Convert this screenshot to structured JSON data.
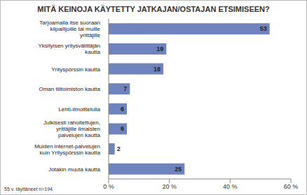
{
  "chart_data": {
    "type": "bar",
    "title": "MITÄ KEINOJA KÄYTETTY JATKAJAN/OSTAJAN ETSIMISEEN?",
    "orientation": "horizontal",
    "categories": [
      "Tarjoamalla itse suoraan kilpailijoille tai muille yrittäjille",
      "Yksityisen yritysvälittäjän kautta",
      "Yrityspörssin kautta",
      "Oman tilitoimiston kautta",
      "Lehti-ilmoittelulla",
      "Julkisesti rahoitettujen, yrittäjille ilmaisten palvelujen kautta",
      "Muiden internet-palvelujen kuin Yrityspörssin kautta",
      "Jotakin muuta kautta"
    ],
    "values": [
      53,
      19,
      18,
      7,
      6,
      6,
      2,
      25
    ],
    "color": "#6f83bf",
    "xlim": [
      0,
      60
    ],
    "xticks": [
      {
        "value": 0,
        "label": "0 %"
      },
      {
        "value": 20,
        "label": "20 %"
      },
      {
        "value": 40,
        "label": "40 %"
      },
      {
        "value": 60,
        "label": "60 %"
      }
    ],
    "grid": false,
    "data_labels": true,
    "annotations": [
      "55 v. täyttäneet n=194"
    ]
  }
}
